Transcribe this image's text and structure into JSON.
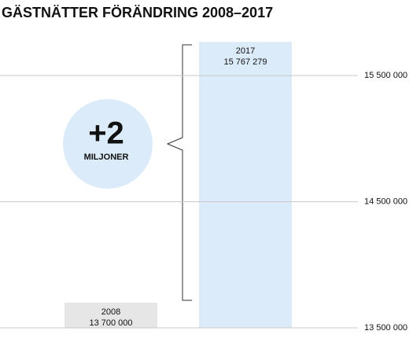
{
  "chart_data": {
    "type": "bar",
    "title": "GÄSTNÄTTER FÖRÄNDRING 2008–2017",
    "categories": [
      "2008",
      "2017"
    ],
    "values": [
      13700000,
      15767279
    ],
    "value_labels": [
      "13 700 000",
      "15 767 279"
    ],
    "colors": [
      "#e6e6e6",
      "#dcebf9"
    ],
    "ylim": [
      13500000,
      15850000
    ],
    "yticks": [
      {
        "value": 13500000,
        "label": "13 500 000"
      },
      {
        "value": 14500000,
        "label": "14 500 000"
      },
      {
        "value": 15500000,
        "label": "15 500 000"
      }
    ],
    "grid": true,
    "annotation": {
      "value": "+2",
      "unit": "MILJONER"
    }
  }
}
